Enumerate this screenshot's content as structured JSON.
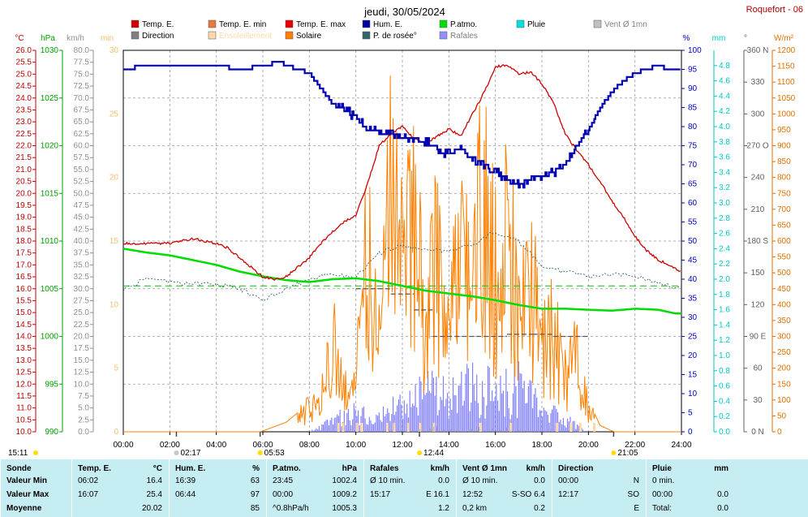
{
  "header": {
    "title": "jeudi, 30/05/2024",
    "site": "Roquefort - 06"
  },
  "legend": [
    {
      "label": "Temp. E.",
      "color": "#d00000",
      "text_color": "#000000"
    },
    {
      "label": "Temp. E. min",
      "color": "#e87840",
      "text_color": "#000000"
    },
    {
      "label": "Temp. E. max",
      "color": "#e80000",
      "text_color": "#000000"
    },
    {
      "label": "Hum. E.",
      "color": "#0000a0",
      "text_color": "#000000"
    },
    {
      "label": "P.atmo.",
      "color": "#00dd00",
      "text_color": "#000000"
    },
    {
      "label": "Pluie",
      "color": "#00e0e0",
      "text_color": "#000000"
    },
    {
      "label": "Vent Ø 1mn",
      "color": "#c0c0c0",
      "text_color": "#808080"
    },
    {
      "label": "Direction",
      "color": "#808080",
      "text_color": "#000000"
    },
    {
      "label": "Ensoleillement",
      "color": "#ffd8a8",
      "text_color": "#ffd8a8"
    },
    {
      "label": "Solaire",
      "color": "#ff8000",
      "text_color": "#000000"
    },
    {
      "label": "P. de rosée°",
      "color": "#336666",
      "text_color": "#000000"
    },
    {
      "label": "Rafales",
      "color": "#9090ff",
      "text_color": "#808080"
    }
  ],
  "axes_units": {
    "temp": "°C",
    "press": "hPa",
    "wind": "km/h",
    "sun": "min",
    "hum": "%",
    "rain": "mm",
    "dir": "°",
    "solar": "W/m²"
  },
  "axes_ticks": {
    "temp": [
      "10.0",
      "10.5",
      "11.0",
      "11.5",
      "12.0",
      "12.5",
      "13.0",
      "13.5",
      "14.0",
      "14.5",
      "15.0",
      "15.5",
      "16.0",
      "16.5",
      "17.0",
      "17.5",
      "18.0",
      "18.5",
      "19.0",
      "19.5",
      "20.0",
      "20.5",
      "21.0",
      "21.5",
      "22.0",
      "22.5",
      "23.0",
      "23.5",
      "24.0",
      "24.5",
      "25.0",
      "25.5",
      "26.0"
    ],
    "press": [
      "990",
      "995",
      "1000",
      "1005",
      "1010",
      "1015",
      "1020",
      "1025",
      "1030"
    ],
    "wind": [
      "0.0",
      "2.5",
      "5.0",
      "7.5",
      "10.0",
      "12.5",
      "15.0",
      "17.5",
      "20.0",
      "22.5",
      "25.0",
      "27.5",
      "30.0",
      "32.5",
      "35.0",
      "37.5",
      "40.0",
      "42.5",
      "45.0",
      "47.5",
      "50.0",
      "52.5",
      "55.0",
      "57.5",
      "60.0",
      "62.5",
      "65.0",
      "67.5",
      "70.0",
      "72.5",
      "75.0",
      "77.5",
      "80.0"
    ],
    "sun": [
      "0",
      "5",
      "10",
      "15",
      "20",
      "25",
      "30"
    ],
    "hum": [
      "0",
      "5",
      "10",
      "15",
      "20",
      "25",
      "30",
      "35",
      "40",
      "45",
      "50",
      "55",
      "60",
      "65",
      "70",
      "75",
      "80",
      "85",
      "90",
      "95",
      "100"
    ],
    "rain": [
      "0.0",
      "0.2",
      "0.4",
      "0.6",
      "0.8",
      "1.0",
      "1.2",
      "1.4",
      "1.6",
      "1.8",
      "2.0",
      "2.2",
      "2.4",
      "2.6",
      "2.8",
      "3.0",
      "3.2",
      "3.4",
      "3.6",
      "3.8",
      "4.0",
      "4.2",
      "4.4",
      "4.6",
      "4.8"
    ],
    "dir": [
      "0 N",
      "30",
      "60",
      "90 E",
      "120",
      "150",
      "180 S",
      "210",
      "240",
      "270 O",
      "300",
      "330",
      "360 N"
    ],
    "solar": [
      "0",
      "50",
      "100",
      "150",
      "200",
      "250",
      "300",
      "350",
      "400",
      "450",
      "500",
      "550",
      "600",
      "650",
      "700",
      "750",
      "800",
      "850",
      "900",
      "950",
      "1000",
      "1050",
      "1100",
      "1150",
      "1200"
    ]
  },
  "x_labels": [
    "00:00",
    "02:00",
    "04:00",
    "06:00",
    "08:00",
    "10:00",
    "12:00",
    "14:00",
    "16:00",
    "18:00",
    "20:00",
    "22:00",
    "24:00"
  ],
  "events": {
    "start": "15:11",
    "moonrise": "02:17",
    "sunrise": "05:53",
    "transit": "12:44",
    "sunset": "21:05"
  },
  "chart_data": {
    "type": "line",
    "title": "jeudi, 30/05/2024",
    "x_range": [
      "00:00",
      "24:00"
    ],
    "series": [
      {
        "name": "Temp. E.",
        "unit": "°C",
        "x": [
          0,
          0.5,
          1,
          1.5,
          2,
          2.5,
          3,
          3.5,
          4,
          4.5,
          5,
          5.5,
          6,
          6.5,
          7,
          7.5,
          8,
          8.5,
          9,
          9.5,
          10,
          10.5,
          11,
          11.5,
          12,
          12.5,
          13,
          13.5,
          14,
          14.5,
          15,
          15.5,
          16,
          16.5,
          17,
          17.5,
          18,
          18.5,
          19,
          19.5,
          20,
          20.5,
          21,
          21.5,
          22,
          22.5,
          23,
          23.5,
          24
        ],
        "values": [
          17.9,
          17.9,
          17.9,
          17.9,
          17.9,
          18.0,
          18.1,
          18.0,
          17.9,
          17.7,
          17.3,
          16.9,
          16.5,
          16.4,
          16.5,
          16.9,
          17.3,
          17.9,
          18.4,
          18.8,
          19.1,
          20.4,
          22.0,
          22.5,
          22.8,
          22.3,
          22.1,
          22.4,
          22.7,
          22.4,
          23.3,
          24.2,
          25.3,
          25.4,
          25.0,
          25.1,
          24.6,
          23.8,
          22.5,
          21.8,
          21.2,
          20.5,
          19.7,
          19.0,
          18.2,
          17.6,
          17.2,
          17.0,
          16.7
        ]
      },
      {
        "name": "Hum. E.",
        "unit": "%",
        "x": [
          0,
          1,
          2,
          3,
          4,
          5,
          6,
          6.72,
          7,
          7.5,
          8,
          8.5,
          9,
          9.5,
          10,
          10.5,
          11,
          11.5,
          12,
          12.5,
          13,
          13.5,
          14,
          14.5,
          15,
          15.5,
          16,
          16.5,
          17,
          17.5,
          18,
          18.5,
          19,
          19.5,
          20,
          20.5,
          21,
          21.5,
          22,
          22.5,
          23,
          23.5,
          24
        ],
        "values": [
          95,
          96,
          96,
          96,
          96,
          95,
          96,
          97,
          96,
          95,
          94,
          90,
          86,
          85,
          82,
          80,
          79,
          78,
          77,
          77,
          76,
          74,
          73,
          74,
          71,
          70,
          68,
          66,
          65,
          66,
          67,
          68,
          70,
          75,
          79,
          85,
          89,
          92,
          94,
          95,
          96,
          95,
          95
        ]
      },
      {
        "name": "P.atmo.",
        "unit": "hPa",
        "x": [
          0,
          1,
          2,
          3,
          4,
          5,
          6,
          7,
          8,
          9,
          10,
          11,
          12,
          13,
          14,
          15,
          16,
          17,
          18,
          19,
          20,
          21,
          21.5,
          22,
          23,
          23.75,
          24
        ],
        "values": [
          1009.2,
          1008.8,
          1008.5,
          1008.0,
          1007.5,
          1006.8,
          1006.3,
          1005.9,
          1005.7,
          1006.0,
          1006.1,
          1005.8,
          1005.3,
          1004.8,
          1004.5,
          1004.2,
          1003.8,
          1003.3,
          1002.9,
          1002.9,
          1002.8,
          1002.7,
          1002.8,
          1002.9,
          1002.8,
          1002.4,
          1002.4
        ]
      },
      {
        "name": "P. de rosée°",
        "unit": "°C",
        "x": [
          0,
          1,
          2,
          3,
          4,
          5,
          6,
          7,
          8,
          9,
          10,
          11,
          12,
          13,
          14,
          15,
          16,
          17,
          18,
          19,
          20,
          21,
          22,
          23,
          24
        ],
        "values": [
          16.0,
          16.4,
          16.3,
          16.2,
          16.2,
          16.0,
          15.5,
          16.0,
          16.4,
          16.6,
          16.5,
          17.5,
          17.8,
          17.6,
          17.6,
          17.8,
          18.4,
          18.0,
          17.0,
          16.7,
          16.5,
          16.6,
          16.5,
          16.3,
          16.0
        ]
      },
      {
        "name": "Solaire",
        "unit": "W/m²",
        "x": [
          0,
          5.9,
          7,
          8,
          8.5,
          9,
          9.5,
          10,
          10.5,
          11,
          11.5,
          12,
          12.5,
          13,
          13.5,
          14,
          14.5,
          15,
          15.5,
          16,
          16.5,
          17,
          17.5,
          18,
          18.5,
          19,
          19.5,
          20,
          20.5,
          21.1,
          24
        ],
        "values": [
          0,
          0,
          30,
          90,
          120,
          350,
          150,
          200,
          700,
          400,
          900,
          600,
          800,
          400,
          700,
          350,
          780,
          700,
          880,
          600,
          750,
          500,
          620,
          300,
          400,
          200,
          300,
          100,
          20,
          0,
          0
        ]
      },
      {
        "name": "Rafales",
        "unit": "km/h",
        "x": [
          0,
          8,
          9,
          10,
          11,
          12,
          13,
          14,
          15,
          16,
          17,
          18,
          19,
          20,
          24
        ],
        "values": [
          0,
          0,
          3,
          5,
          4,
          7,
          10,
          9,
          12,
          10,
          11,
          6,
          3,
          0,
          0
        ]
      },
      {
        "name": "Vent Ø 1mn",
        "unit": "km/h",
        "x": [
          0,
          12,
          13,
          14,
          15,
          16,
          17,
          18,
          24
        ],
        "values": [
          0,
          0,
          1,
          1.5,
          1,
          1.2,
          0.8,
          0.3,
          0
        ]
      },
      {
        "name": "Direction",
        "unit": "°",
        "x": [
          10.0,
          11.5,
          12.5,
          13.3,
          16.5,
          17.6,
          18.5,
          20.0
        ],
        "values": [
          135,
          130,
          115,
          90,
          92,
          92,
          90,
          95
        ]
      }
    ],
    "reference_lines": [
      {
        "name": "P.atmo. moyenne",
        "value": 1005.3,
        "unit": "hPa"
      }
    ]
  },
  "summary": {
    "columns": [
      {
        "title": "Sonde",
        "unit": "",
        "rows": [
          [
            "Valeur Min",
            "",
            ""
          ],
          [
            "Valeur Max",
            "",
            ""
          ],
          [
            "Moyenne",
            "",
            ""
          ]
        ]
      },
      {
        "title": "Temp. E.",
        "unit": "°C",
        "rows": [
          [
            "06:02",
            "",
            "16.4"
          ],
          [
            "16:07",
            "",
            "25.4"
          ],
          [
            "",
            "",
            "20.02"
          ]
        ]
      },
      {
        "title": "Hum. E.",
        "unit": "%",
        "rows": [
          [
            "16:39",
            "",
            "63"
          ],
          [
            "06:44",
            "",
            "97"
          ],
          [
            "",
            "",
            "85"
          ]
        ]
      },
      {
        "title": "P.atmo.",
        "unit": "hPa",
        "rows": [
          [
            "23:45",
            "",
            "1002.4"
          ],
          [
            "00:00",
            "",
            "1009.2"
          ],
          [
            "^0.8hPa/h",
            "",
            "1005.3"
          ]
        ]
      },
      {
        "title": "Rafales",
        "unit": "km/h",
        "rows": [
          [
            "Ø 10 min.",
            "",
            "0.0"
          ],
          [
            "15:17",
            "",
            "E 16.1"
          ],
          [
            "",
            "",
            "1.2"
          ]
        ]
      },
      {
        "title": "Vent Ø 1mn",
        "unit": "km/h",
        "rows": [
          [
            "Ø 10 min.",
            "",
            "0.0"
          ],
          [
            "12:52",
            "",
            "S-SO 6.4"
          ],
          [
            "0,2 km",
            "",
            "0.2"
          ]
        ]
      },
      {
        "title": "Direction",
        "unit": "",
        "rows": [
          [
            "00:00",
            "",
            "N"
          ],
          [
            "12:17",
            "",
            "SO"
          ],
          [
            "",
            "",
            "E"
          ]
        ]
      },
      {
        "title": "Pluie",
        "unit": "mm",
        "rows": [
          [
            "0 min.",
            "",
            ""
          ],
          [
            "00:00",
            "",
            "0.0"
          ],
          [
            "Total:",
            "",
            "0.0"
          ]
        ]
      }
    ]
  }
}
